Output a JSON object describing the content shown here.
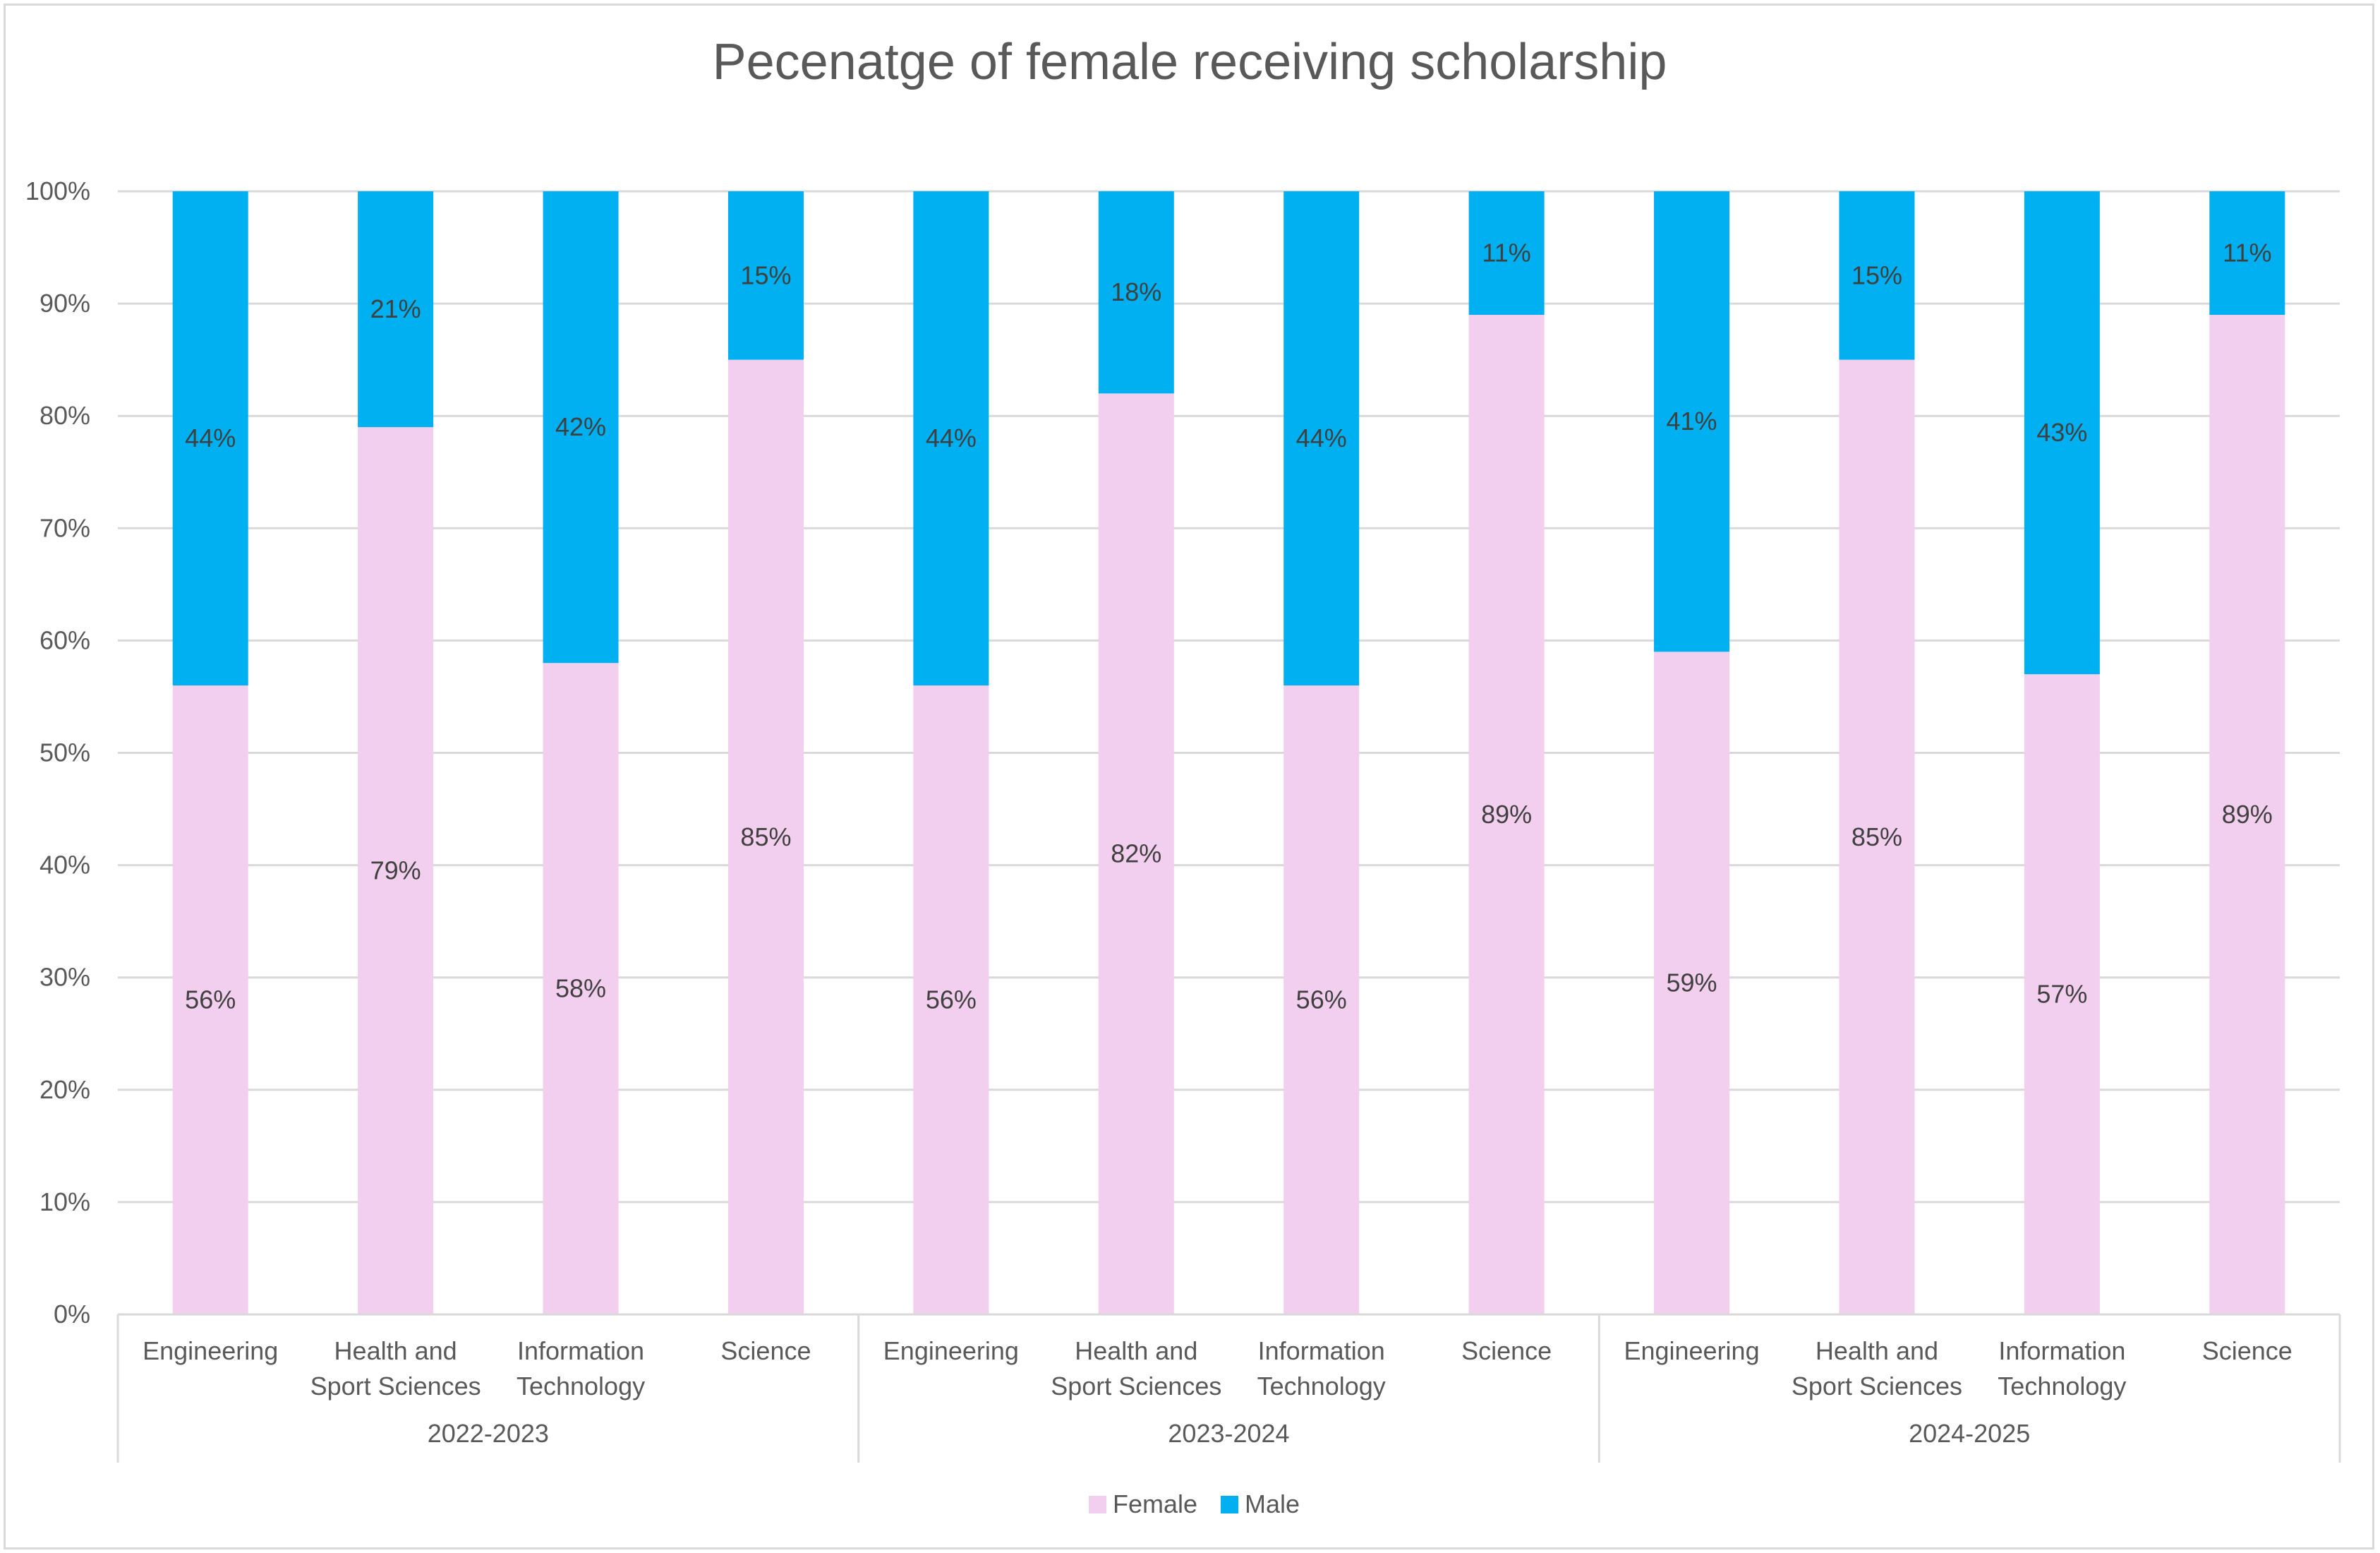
{
  "chart_data": {
    "type": "bar",
    "stacked": true,
    "percent_stacked": true,
    "title": "Pecenatge of female receiving scholarship",
    "xlabel": "",
    "ylabel": "",
    "ylim": [
      0,
      100
    ],
    "y_ticks": [
      "0%",
      "10%",
      "20%",
      "30%",
      "40%",
      "50%",
      "60%",
      "70%",
      "80%",
      "90%",
      "100%"
    ],
    "grid": true,
    "legend_position": "bottom",
    "groups": [
      {
        "label": "2022-2023",
        "categories": [
          "Engineering",
          "Health and Sport Sciences",
          "Information Technology",
          "Science"
        ]
      },
      {
        "label": "2023-2024",
        "categories": [
          "Engineering",
          "Health and Sport Sciences",
          "Information Technology",
          "Science"
        ]
      },
      {
        "label": "2024-2025",
        "categories": [
          "Engineering",
          "Health and Sport Sciences",
          "Information Technology",
          "Science"
        ]
      }
    ],
    "category_label_lines": {
      "Engineering": [
        "Engineering"
      ],
      "Health and Sport Sciences": [
        "Health and",
        "Sport Sciences"
      ],
      "Information Technology": [
        "Information",
        "Technology"
      ],
      "Science": [
        "Science"
      ]
    },
    "series": [
      {
        "name": "Female",
        "color": "#f2cfee",
        "values": [
          56,
          79,
          58,
          85,
          56,
          82,
          56,
          89,
          59,
          85,
          57,
          89
        ],
        "labels": [
          "56%",
          "79%",
          "58%",
          "85%",
          "56%",
          "82%",
          "56%",
          "89%",
          "59%",
          "85%",
          "57%",
          "89%"
        ]
      },
      {
        "name": "Male",
        "color": "#00b0f0",
        "values": [
          44,
          21,
          42,
          15,
          44,
          18,
          44,
          11,
          41,
          15,
          43,
          11
        ],
        "labels": [
          "44%",
          "21%",
          "42%",
          "15%",
          "44%",
          "18%",
          "44%",
          "11%",
          "41%",
          "15%",
          "43%",
          "11%"
        ]
      }
    ]
  },
  "colors": {
    "grid": "#d9d9d9",
    "text": "#595959",
    "label_text": "#404040"
  }
}
